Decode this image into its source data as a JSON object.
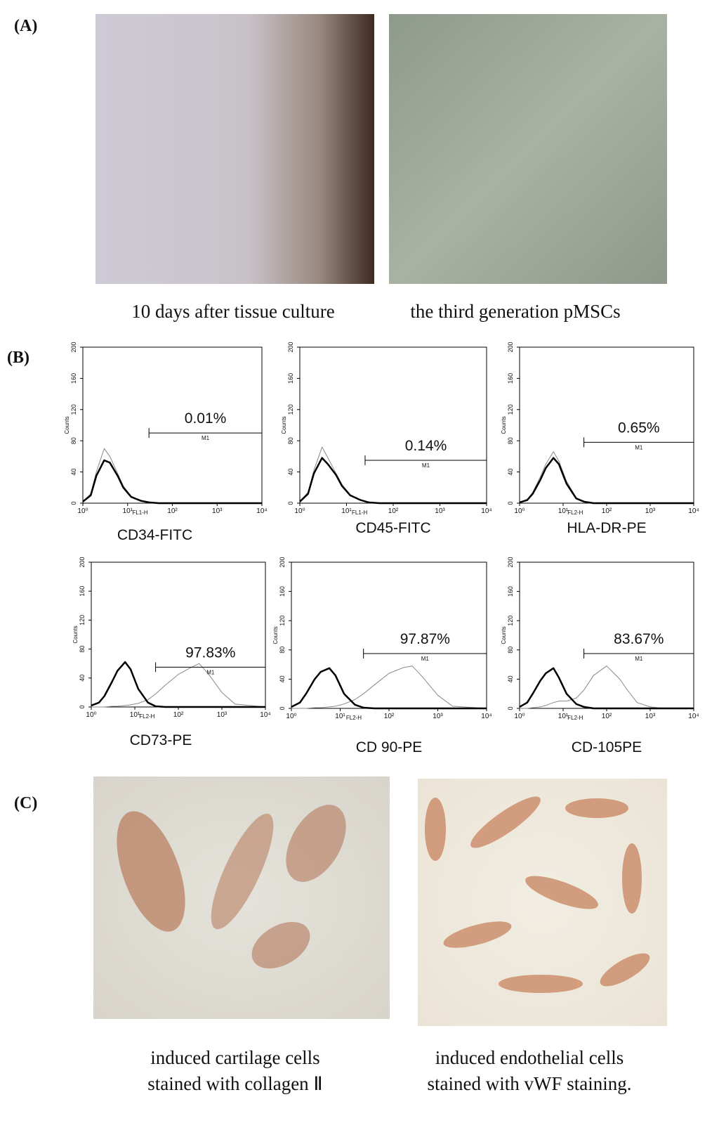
{
  "panel_labels": [
    "(A)",
    "(B)",
    "(C)"
  ],
  "panel_a": {
    "captions": [
      "10 days after tissue culture",
      "the third  generation pMSCs"
    ]
  },
  "panel_c": {
    "captions": [
      [
        "induced cartilage cells",
        "stained with collagen Ⅱ"
      ],
      [
        "induced endothelial cells",
        "stained with vWF staining."
      ]
    ]
  },
  "chart_data": [
    {
      "type": "line",
      "title": "CD34-FITC",
      "x_label": "FL1-H",
      "y_label": "Counts",
      "x_scale": "log",
      "xlim": [
        1,
        10000
      ],
      "xticks": [
        {
          "value": 1,
          "label": "10⁰"
        },
        {
          "value": 10,
          "label": "10¹"
        },
        {
          "value": 100,
          "label": "10²"
        },
        {
          "value": 1000,
          "label": "10³"
        },
        {
          "value": 10000,
          "label": "10⁴"
        }
      ],
      "ylim": [
        0,
        200
      ],
      "yticks": [
        0,
        40,
        80,
        120,
        160,
        200
      ],
      "x": [
        1,
        1.5,
        2,
        3,
        4,
        6,
        8,
        12,
        20,
        30,
        50,
        100,
        200,
        300,
        500,
        1000,
        2000,
        10000
      ],
      "series": [
        {
          "color": "#888888",
          "line_width": 1,
          "values": [
            2,
            12,
            40,
            70,
            60,
            38,
            22,
            9,
            3,
            1,
            0,
            0,
            0,
            0,
            0,
            0,
            0,
            0
          ]
        },
        {
          "color": "#000000",
          "line_width": 2.5,
          "values": [
            2,
            10,
            35,
            55,
            52,
            35,
            20,
            8,
            3,
            1,
            0,
            0,
            0,
            0,
            0,
            0,
            0,
            0
          ]
        }
      ],
      "gate": {
        "label": "M1",
        "start": 30,
        "end": 10000,
        "level": 90,
        "percent": "0.01%"
      }
    },
    {
      "type": "line",
      "title": "CD45-FITC",
      "x_label": "FL1-H",
      "y_label": "Counts",
      "x_scale": "log",
      "xlim": [
        1,
        10000
      ],
      "xticks": [
        {
          "value": 1,
          "label": "10⁰"
        },
        {
          "value": 10,
          "label": "10¹"
        },
        {
          "value": 100,
          "label": "10²"
        },
        {
          "value": 1000,
          "label": "10³"
        },
        {
          "value": 10000,
          "label": "10⁴"
        }
      ],
      "ylim": [
        0,
        200
      ],
      "yticks": [
        0,
        40,
        80,
        120,
        160,
        200
      ],
      "x": [
        1,
        1.5,
        2,
        3,
        4,
        6,
        8,
        12,
        20,
        30,
        50,
        100,
        200,
        300,
        500,
        1000,
        2000,
        10000
      ],
      "series": [
        {
          "color": "#888888",
          "line_width": 1,
          "values": [
            2,
            14,
            42,
            72,
            58,
            38,
            24,
            11,
            4,
            1,
            0,
            0,
            0,
            0,
            0,
            0,
            0,
            0
          ]
        },
        {
          "color": "#000000",
          "line_width": 2.5,
          "values": [
            2,
            12,
            38,
            58,
            50,
            36,
            22,
            10,
            4,
            1,
            0,
            0,
            0,
            0,
            0,
            0,
            0,
            0
          ]
        }
      ],
      "gate": {
        "label": "M1",
        "start": 25,
        "end": 10000,
        "level": 55,
        "percent": "0.14%"
      }
    },
    {
      "type": "line",
      "title": "HLA-DR-PE",
      "x_label": "FL2-H",
      "y_label": "Counts",
      "x_scale": "log",
      "xlim": [
        1,
        10000
      ],
      "xticks": [
        {
          "value": 1,
          "label": "10⁰"
        },
        {
          "value": 10,
          "label": "10¹"
        },
        {
          "value": 100,
          "label": "10²"
        },
        {
          "value": 1000,
          "label": "10³"
        },
        {
          "value": 10000,
          "label": "10⁴"
        }
      ],
      "ylim": [
        0,
        200
      ],
      "yticks": [
        0,
        40,
        80,
        120,
        160,
        200
      ],
      "x": [
        1,
        1.5,
        2,
        3,
        4,
        6,
        8,
        12,
        20,
        30,
        50,
        100,
        200,
        300,
        500,
        1000,
        2000,
        10000
      ],
      "series": [
        {
          "color": "#888888",
          "line_width": 1,
          "values": [
            1,
            5,
            14,
            34,
            50,
            66,
            54,
            28,
            7,
            2,
            0,
            0,
            0,
            0,
            0,
            0,
            0,
            0
          ]
        },
        {
          "color": "#000000",
          "line_width": 2.5,
          "values": [
            1,
            4,
            12,
            30,
            45,
            58,
            50,
            25,
            6,
            2,
            0,
            0,
            0,
            0,
            0,
            0,
            0,
            0
          ]
        }
      ],
      "gate": {
        "label": "M1",
        "start": 30,
        "end": 10000,
        "level": 78,
        "percent": "0.65%"
      }
    },
    {
      "type": "line",
      "title": "CD73-PE",
      "x_label": "FL2-H",
      "y_label": "Counts",
      "x_scale": "log",
      "xlim": [
        1,
        10000
      ],
      "xticks": [
        {
          "value": 1,
          "label": "10⁰"
        },
        {
          "value": 10,
          "label": "10¹"
        },
        {
          "value": 100,
          "label": "10²"
        },
        {
          "value": 1000,
          "label": "10³"
        },
        {
          "value": 10000,
          "label": "10⁴"
        }
      ],
      "ylim": [
        0,
        200
      ],
      "yticks": [
        0,
        40,
        80,
        120,
        160,
        200
      ],
      "x": [
        1,
        1.5,
        2,
        3,
        4,
        6,
        8,
        12,
        20,
        30,
        50,
        100,
        200,
        300,
        500,
        1000,
        2000,
        10000
      ],
      "series": [
        {
          "color": "#888888",
          "line_width": 1,
          "values": [
            0,
            0,
            0,
            1,
            1,
            2,
            3,
            5,
            10,
            18,
            30,
            45,
            55,
            60,
            45,
            20,
            4,
            0
          ]
        },
        {
          "color": "#000000",
          "line_width": 2.5,
          "values": [
            2,
            6,
            15,
            35,
            50,
            62,
            52,
            25,
            6,
            1,
            0,
            0,
            0,
            0,
            0,
            0,
            0,
            0
          ]
        }
      ],
      "gate": {
        "label": "M1",
        "start": 30,
        "end": 10000,
        "level": 55,
        "percent": "97.83%"
      }
    },
    {
      "type": "line",
      "title": "CD 90-PE",
      "x_label": "FL2-H",
      "y_label": "Counts",
      "x_scale": "log",
      "xlim": [
        1,
        10000
      ],
      "xticks": [
        {
          "value": 1,
          "label": "10⁰"
        },
        {
          "value": 10,
          "label": "10¹"
        },
        {
          "value": 100,
          "label": "10²"
        },
        {
          "value": 1000,
          "label": "10³"
        },
        {
          "value": 10000,
          "label": "10⁴"
        }
      ],
      "ylim": [
        0,
        200
      ],
      "yticks": [
        0,
        40,
        80,
        120,
        160,
        200
      ],
      "x": [
        1,
        1.5,
        2,
        3,
        4,
        6,
        8,
        12,
        20,
        30,
        50,
        100,
        200,
        300,
        500,
        1000,
        2000,
        10000
      ],
      "series": [
        {
          "color": "#888888",
          "line_width": 1,
          "values": [
            0,
            0,
            0,
            1,
            1,
            2,
            3,
            6,
            12,
            20,
            32,
            48,
            56,
            58,
            42,
            18,
            3,
            0
          ]
        },
        {
          "color": "#000000",
          "line_width": 2.5,
          "values": [
            2,
            8,
            20,
            40,
            50,
            55,
            45,
            20,
            5,
            1,
            0,
            0,
            0,
            0,
            0,
            0,
            0,
            0
          ]
        }
      ],
      "gate": {
        "label": "M1",
        "start": 30,
        "end": 10000,
        "level": 75,
        "percent": "97.87%"
      }
    },
    {
      "type": "line",
      "title": "CD-105PE",
      "x_label": "FL2-H",
      "y_label": "Counts",
      "x_scale": "log",
      "xlim": [
        1,
        10000
      ],
      "xticks": [
        {
          "value": 1,
          "label": "10⁰"
        },
        {
          "value": 10,
          "label": "10¹"
        },
        {
          "value": 100,
          "label": "10²"
        },
        {
          "value": 1000,
          "label": "10³"
        },
        {
          "value": 10000,
          "label": "10⁴"
        }
      ],
      "ylim": [
        0,
        200
      ],
      "yticks": [
        0,
        40,
        80,
        120,
        160,
        200
      ],
      "x": [
        1,
        1.5,
        2,
        3,
        4,
        6,
        8,
        12,
        20,
        30,
        50,
        100,
        200,
        300,
        500,
        1000,
        2000,
        10000
      ],
      "series": [
        {
          "color": "#888888",
          "line_width": 1,
          "values": [
            0,
            0,
            1,
            2,
            4,
            8,
            10,
            10,
            14,
            25,
            45,
            58,
            40,
            25,
            8,
            2,
            0,
            0
          ]
        },
        {
          "color": "#000000",
          "line_width": 2.5,
          "values": [
            2,
            8,
            20,
            38,
            48,
            55,
            42,
            20,
            6,
            2,
            0,
            0,
            0,
            0,
            0,
            0,
            0,
            0
          ]
        }
      ],
      "gate": {
        "label": "M1",
        "start": 30,
        "end": 10000,
        "level": 75,
        "percent": "83.67%"
      }
    }
  ]
}
